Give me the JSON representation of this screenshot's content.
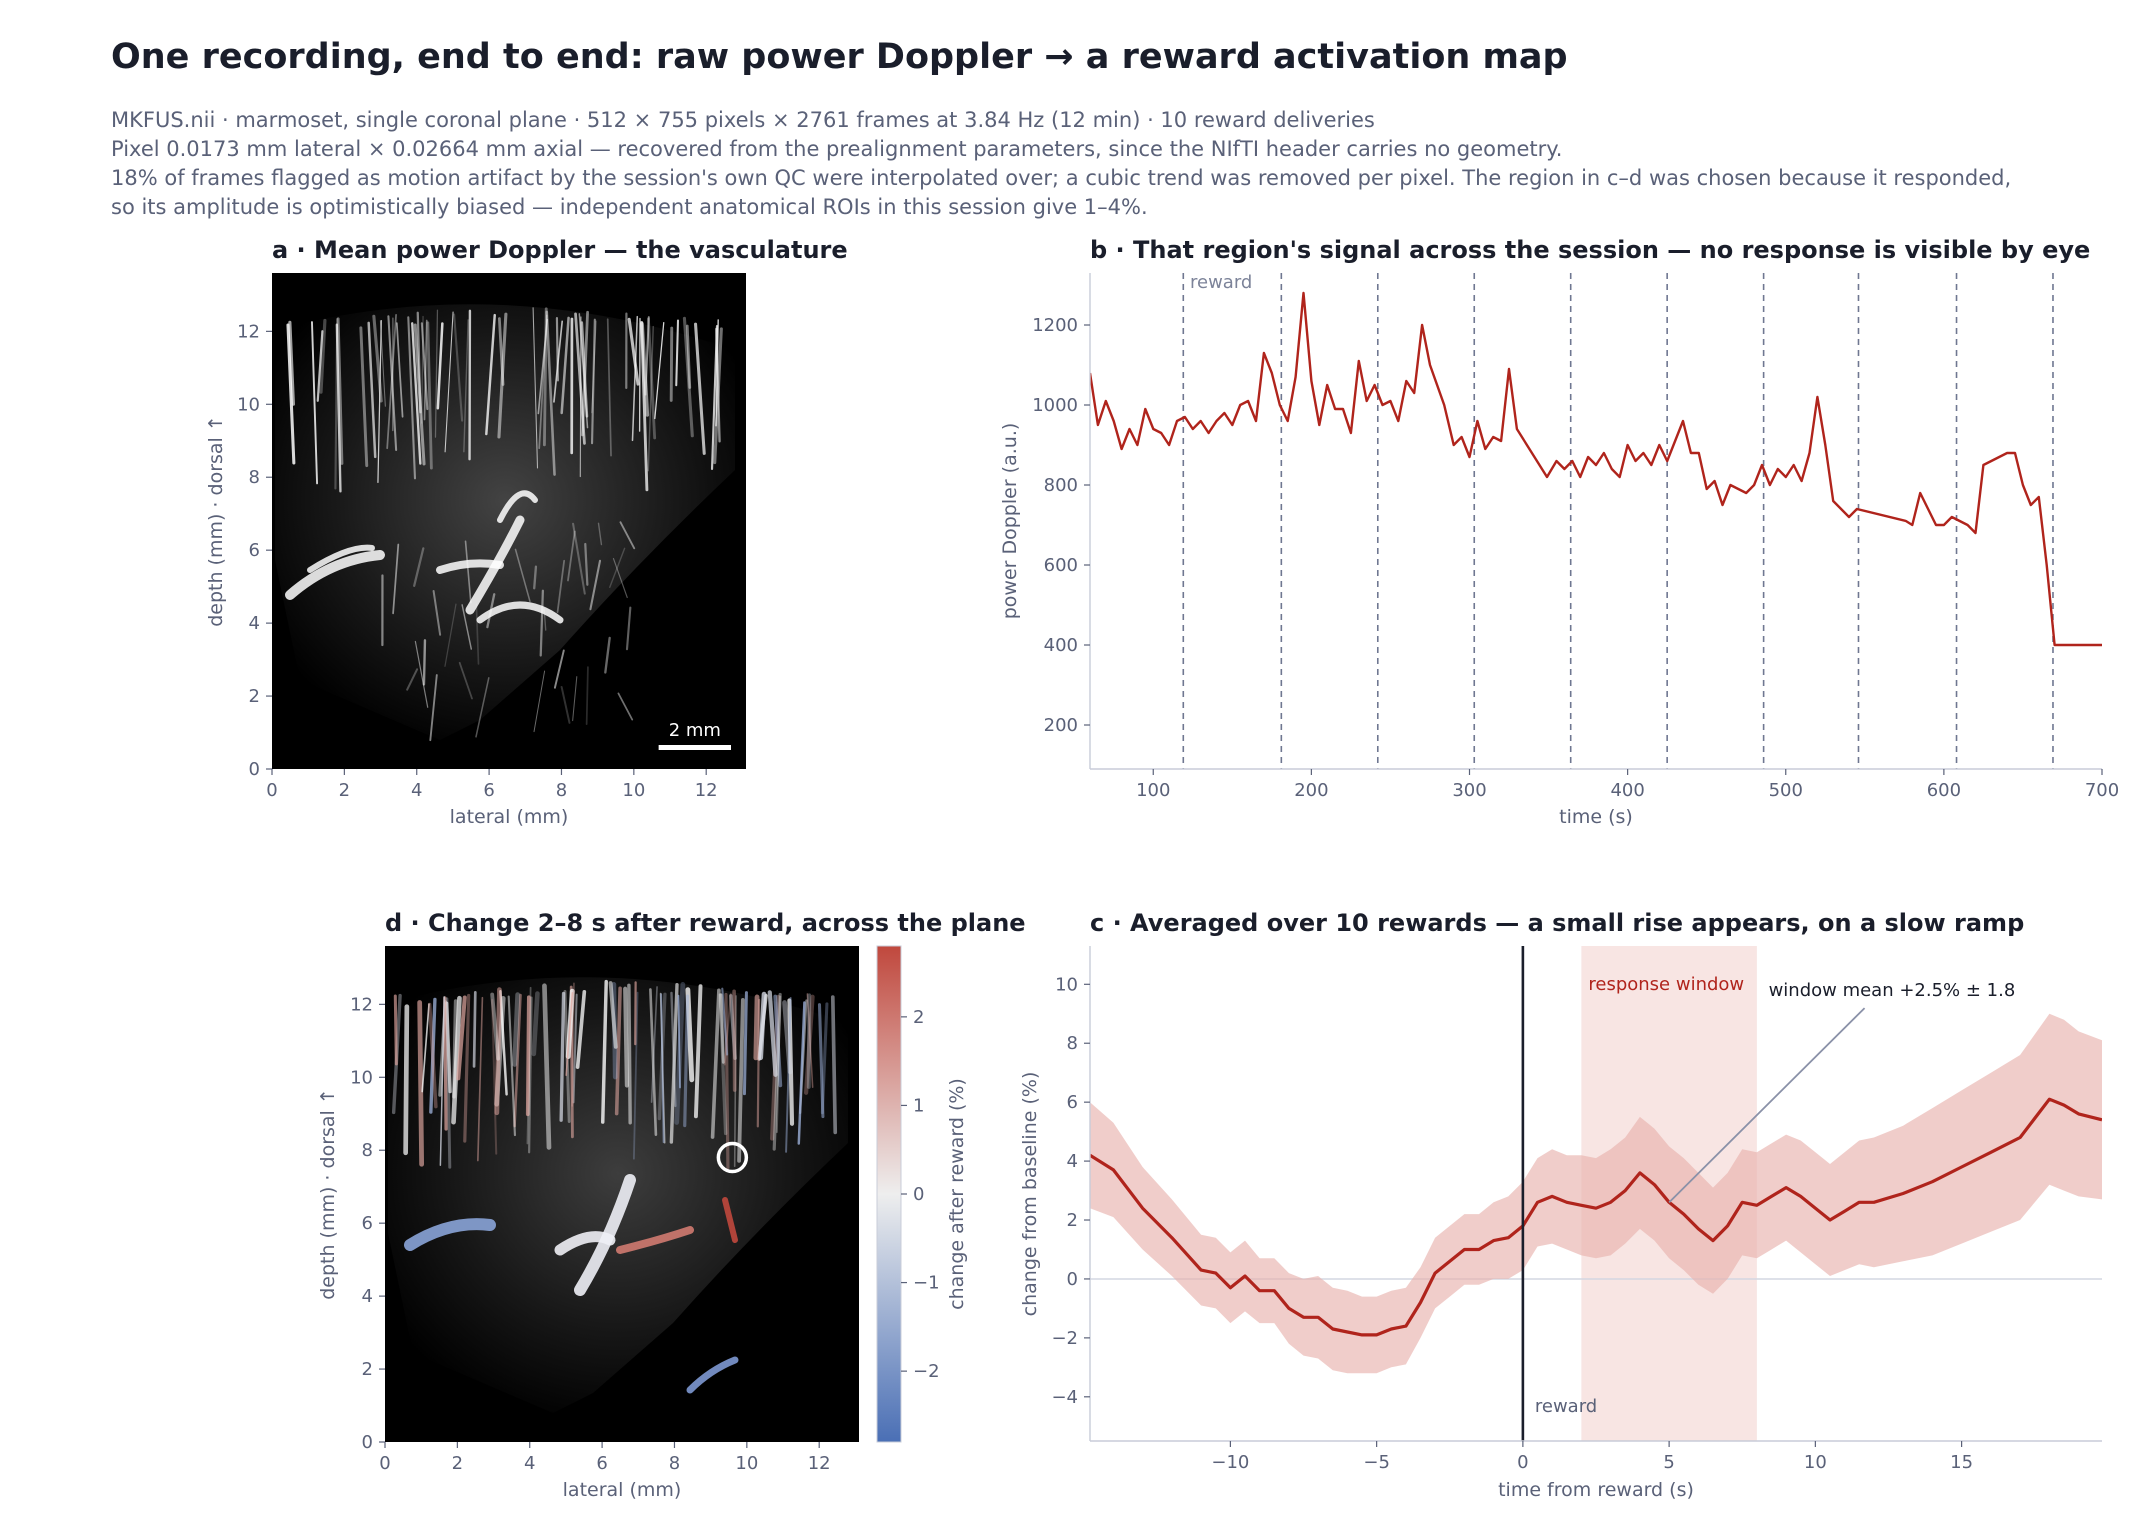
{
  "header": {
    "title": "One recording, end to end: raw power Doppler → a reward activation map",
    "subtitle_lines": [
      "MKFUS.nii · marmoset, single coronal plane · 512 × 755 pixels × 2761 frames at 3.84 Hz (12 min) · 10 reward deliveries",
      "Pixel 0.0173 mm lateral × 0.02664 mm axial — recovered from the prealignment parameters, since the NIfTI header carries no geometry.",
      "18% of frames flagged as motion artifact by the session's own QC were interpolated over; a cubic trend was removed per pixel. The region in c–d was chosen because it responded,",
      "so its amplitude is optimistically biased — independent anatomical ROIs in this session give 1–4%."
    ]
  },
  "colors": {
    "series": "#b0241c",
    "band": "#e8b2ae",
    "window": "#f6dcda",
    "reward_line": "#6f7791",
    "text_dark": "#1a1e2b",
    "text_muted": "#5a6178",
    "cmap_neg": "#4a6fb5",
    "cmap_mid": "#eeeeee",
    "cmap_pos": "#c0483d"
  },
  "chart_data": [
    {
      "id": "a",
      "type": "heatmap",
      "title": "a · Mean power Doppler — the vasculature",
      "xlabel": "lateral (mm)",
      "ylabel": "depth (mm)  ·  dorsal ↑",
      "xlim": [
        0,
        13.1
      ],
      "ylim": [
        0,
        13.6
      ],
      "xticks": [
        "0",
        "2",
        "4",
        "6",
        "8",
        "10",
        "12"
      ],
      "yticks": [
        "0",
        "2",
        "4",
        "6",
        "8",
        "10",
        "12"
      ],
      "scalebar_label": "2 mm",
      "scalebar_mm": 2
    },
    {
      "id": "b",
      "type": "line",
      "title": "b · That region's signal across the session — no response is visible by eye",
      "xlabel": "time (s)",
      "ylabel": "power Doppler (a.u.)",
      "xlim": [
        60,
        700
      ],
      "ylim": [
        90,
        1330
      ],
      "xticks": [
        "100",
        "200",
        "300",
        "400",
        "500",
        "600",
        "700"
      ],
      "yticks": [
        "200",
        "400",
        "600",
        "800",
        "1000",
        "1200"
      ],
      "reward_label": "reward",
      "reward_times": [
        119,
        181,
        242,
        303,
        364,
        425,
        486,
        546,
        608,
        669
      ],
      "series": [
        {
          "x": [
            60,
            65,
            70,
            75,
            80,
            85,
            90,
            95,
            100,
            105,
            110,
            115,
            120,
            125,
            130,
            135,
            140,
            145,
            150,
            155,
            160,
            165,
            170,
            175,
            180,
            185,
            190,
            195,
            200,
            205,
            210,
            215,
            220,
            225,
            230,
            235,
            240,
            245,
            250,
            255,
            260,
            265,
            270,
            275,
            284,
            290,
            295,
            300,
            305,
            310,
            315,
            320,
            325,
            330,
            349,
            355,
            360,
            365,
            370,
            375,
            380,
            385,
            390,
            395,
            400,
            405,
            410,
            415,
            420,
            425,
            430,
            435,
            440,
            445,
            450,
            455,
            460,
            465,
            470,
            475,
            480,
            485,
            490,
            495,
            500,
            505,
            510,
            515,
            520,
            525,
            530,
            535,
            540,
            545,
            576,
            580,
            585,
            590,
            595,
            600,
            605,
            610,
            615,
            620,
            625,
            630,
            635,
            640,
            645,
            650,
            655,
            660,
            665,
            670,
            675,
            680,
            685,
            690,
            695,
            700
          ],
          "y": [
            1080,
            950,
            1010,
            960,
            890,
            940,
            900,
            990,
            940,
            930,
            900,
            960,
            970,
            940,
            960,
            930,
            960,
            980,
            950,
            1000,
            1010,
            960,
            1130,
            1080,
            1000,
            960,
            1070,
            1280,
            1060,
            950,
            1050,
            990,
            990,
            930,
            1110,
            1010,
            1050,
            1000,
            1010,
            960,
            1060,
            1030,
            1200,
            1100,
            1000,
            900,
            920,
            870,
            960,
            890,
            920,
            910,
            1090,
            940,
            820,
            860,
            840,
            860,
            820,
            870,
            850,
            880,
            840,
            820,
            900,
            860,
            880,
            850,
            900,
            860,
            910,
            960,
            880,
            880,
            790,
            810,
            750,
            800,
            790,
            780,
            800,
            850,
            800,
            840,
            820,
            850,
            810,
            880,
            1020,
            900,
            760,
            740,
            720,
            740,
            710,
            700,
            780,
            740,
            700,
            700,
            720,
            710,
            700,
            680,
            850,
            860,
            870,
            880,
            880,
            800,
            750,
            770,
            600,
            400,
            400,
            400,
            400,
            400,
            400,
            400
          ]
        }
      ]
    },
    {
      "id": "d",
      "type": "heatmap",
      "title": "d · Change 2–8 s after reward, across the plane",
      "xlabel": "lateral (mm)",
      "ylabel": "depth (mm)  ·  dorsal ↑",
      "colorbar_label": "change after reward (%)",
      "colorbar_range": [
        -2.8,
        2.8
      ],
      "colorbar_ticks": [
        "−2",
        "−1",
        "0",
        "1",
        "2"
      ],
      "xlim": [
        0,
        13.1
      ],
      "ylim": [
        0,
        13.6
      ],
      "xticks": [
        "0",
        "2",
        "4",
        "6",
        "8",
        "10",
        "12"
      ],
      "yticks": [
        "0",
        "2",
        "4",
        "6",
        "8",
        "10",
        "12"
      ],
      "roi_center": [
        9.6,
        7.8
      ]
    },
    {
      "id": "c",
      "type": "line",
      "title": "c · Averaged over 10 rewards — a small rise appears, on a slow ramp",
      "xlabel": "time from reward (s)",
      "ylabel": "change from baseline (%)",
      "xlim": [
        -14.8,
        19.8
      ],
      "ylim": [
        -5.5,
        11.3
      ],
      "xticks": [
        "−10",
        "−5",
        "0",
        "5",
        "10",
        "15"
      ],
      "yticks": [
        "−4",
        "−2",
        "0",
        "2",
        "4",
        "6",
        "8",
        "10"
      ],
      "response_window": [
        2,
        8
      ],
      "response_window_label": "response window",
      "reward_label": "reward",
      "annotation": "window mean +2.5% ± 1.8",
      "series": [
        {
          "x": [
            -14.8,
            -14,
            -13,
            -12,
            -11,
            -10.5,
            -10,
            -9.5,
            -9,
            -8.5,
            -8,
            -7.5,
            -7,
            -6.5,
            -6,
            -5.5,
            -5,
            -4.5,
            -4,
            -3.5,
            -3,
            -2.5,
            -2,
            -1.5,
            -1,
            -0.5,
            0,
            0.5,
            1,
            1.5,
            2,
            2.5,
            3,
            3.5,
            4,
            4.5,
            5,
            5.5,
            6,
            6.5,
            7,
            7.5,
            8,
            8.5,
            9,
            9.5,
            10,
            10.5,
            11,
            11.5,
            12,
            13,
            14,
            15,
            16,
            17,
            18,
            18.5,
            19,
            19.8
          ],
          "y": [
            4.2,
            3.7,
            2.4,
            1.4,
            0.3,
            0.2,
            -0.3,
            0.1,
            -0.4,
            -0.4,
            -1.0,
            -1.3,
            -1.3,
            -1.7,
            -1.8,
            -1.9,
            -1.9,
            -1.7,
            -1.6,
            -0.8,
            0.2,
            0.6,
            1.0,
            1.0,
            1.3,
            1.4,
            1.8,
            2.6,
            2.8,
            2.6,
            2.5,
            2.4,
            2.6,
            3.0,
            3.6,
            3.2,
            2.6,
            2.2,
            1.7,
            1.3,
            1.8,
            2.6,
            2.5,
            2.8,
            3.1,
            2.8,
            2.4,
            2.0,
            2.3,
            2.6,
            2.6,
            2.9,
            3.3,
            3.8,
            4.3,
            4.8,
            6.1,
            5.9,
            5.6,
            5.4
          ],
          "band_halfwidth": [
            1.8,
            1.6,
            1.4,
            1.3,
            1.2,
            1.2,
            1.2,
            1.2,
            1.1,
            1.1,
            1.2,
            1.3,
            1.4,
            1.4,
            1.4,
            1.3,
            1.3,
            1.3,
            1.3,
            1.2,
            1.2,
            1.2,
            1.2,
            1.2,
            1.3,
            1.4,
            1.5,
            1.5,
            1.6,
            1.6,
            1.7,
            1.7,
            1.8,
            1.8,
            1.9,
            1.9,
            1.9,
            1.9,
            1.9,
            1.8,
            1.8,
            1.8,
            1.8,
            1.8,
            1.8,
            1.9,
            1.9,
            1.9,
            2.0,
            2.1,
            2.2,
            2.3,
            2.5,
            2.6,
            2.7,
            2.8,
            2.9,
            2.9,
            2.8,
            2.7
          ]
        }
      ]
    }
  ]
}
